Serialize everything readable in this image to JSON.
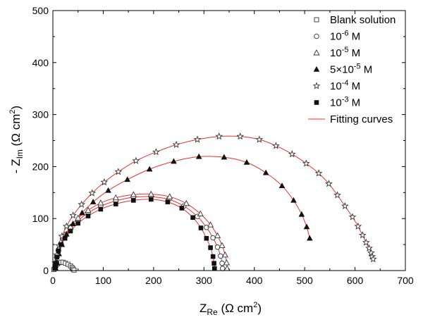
{
  "chart_data": {
    "type": "scatter",
    "xlabel": {
      "main": "Z",
      "sub": "Re",
      "unit_open": " (Ω cm",
      "unit_sup": "2",
      "unit_close": ")"
    },
    "ylabel": {
      "main": "- Z",
      "sub": "Im",
      "unit_open": " (Ω cm",
      "unit_sup": "2",
      "unit_close": ")"
    },
    "xlim": [
      0,
      700
    ],
    "ylim": [
      0,
      500
    ],
    "xticks": [
      0,
      100,
      200,
      300,
      400,
      500,
      600,
      700
    ],
    "yticks": [
      0,
      100,
      200,
      300,
      400,
      500
    ],
    "grid": false,
    "legend_position": "top-right",
    "colors": {
      "fit": "#e8302c",
      "marker_stroke": "#333333",
      "marker_fill": "#111111"
    },
    "series": [
      {
        "name": "Blank solution",
        "marker": "square-open",
        "legend": {
          "base": "Blank solution",
          "sup": "",
          "unit": ""
        },
        "x": [
          2,
          4,
          6,
          9,
          12,
          16,
          20,
          25,
          30,
          35,
          38,
          40,
          42
        ],
        "y": [
          2,
          6,
          10,
          13,
          15,
          16,
          16,
          14,
          12,
          9,
          6,
          3,
          1
        ]
      },
      {
        "name": "10-6 M",
        "marker": "circle-open",
        "legend": {
          "base": "10",
          "sup": "-6",
          "unit": "  M"
        },
        "x": [
          5,
          6,
          8,
          11,
          16,
          24,
          35,
          50,
          70,
          95,
          125,
          160,
          195,
          230,
          260,
          287,
          305,
          318,
          327,
          333,
          336,
          337
        ],
        "y": [
          5,
          15,
          28,
          40,
          52,
          65,
          80,
          96,
          111,
          124,
          134,
          141,
          142,
          137,
          124,
          104,
          83,
          63,
          45,
          28,
          14,
          4
        ]
      },
      {
        "name": "10-5 M",
        "marker": "triangle-open",
        "legend": {
          "base": "10",
          "sup": "-5",
          "unit": "  M"
        },
        "x": [
          5,
          6,
          8,
          11,
          16,
          24,
          35,
          50,
          70,
          95,
          125,
          160,
          195,
          232,
          265,
          293,
          313,
          327,
          336,
          342,
          345,
          346
        ],
        "y": [
          5,
          15,
          29,
          42,
          55,
          69,
          84,
          101,
          116,
          130,
          140,
          146,
          147,
          142,
          129,
          109,
          88,
          67,
          48,
          30,
          15,
          4
        ]
      },
      {
        "name": "5×10-5 M",
        "marker": "triangle-filled",
        "legend": {
          "base": "5×10",
          "sup": "-5",
          "unit": "  M"
        },
        "x": [
          8,
          12,
          18,
          27,
          40,
          58,
          80,
          110,
          148,
          192,
          240,
          290,
          340,
          385,
          423,
          455,
          478,
          494,
          504,
          510
        ],
        "y": [
          15,
          32,
          50,
          70,
          90,
          111,
          132,
          154,
          175,
          195,
          210,
          219,
          218,
          208,
          188,
          163,
          135,
          108,
          84,
          62
        ]
      },
      {
        "name": "10-4 M",
        "marker": "star-open",
        "legend": {
          "base": "10",
          "sup": "-4",
          "unit": "  M"
        },
        "x": [
          5,
          8,
          12,
          18,
          27,
          40,
          57,
          78,
          102,
          130,
          165,
          205,
          245,
          287,
          330,
          372,
          410,
          443,
          475,
          503,
          528,
          548,
          565,
          580,
          595,
          606,
          615,
          622,
          628,
          632,
          634,
          636
        ],
        "y": [
          15,
          30,
          48,
          66,
          85,
          106,
          127,
          149,
          170,
          190,
          211,
          228,
          242,
          252,
          258,
          258,
          252,
          240,
          224,
          206,
          187,
          167,
          145,
          124,
          103,
          85,
          68,
          54,
          43,
          34,
          27,
          22
        ]
      },
      {
        "name": "10-3 M",
        "marker": "square-filled",
        "legend": {
          "base": "10",
          "sup": "-3",
          "unit": "  M"
        },
        "x": [
          5,
          6,
          8,
          11,
          16,
          24,
          35,
          50,
          70,
          95,
          125,
          160,
          195,
          228,
          256,
          278,
          294,
          305,
          313,
          318,
          320,
          321
        ],
        "y": [
          5,
          14,
          26,
          38,
          50,
          62,
          76,
          91,
          105,
          118,
          128,
          135,
          137,
          132,
          120,
          102,
          82,
          62,
          44,
          27,
          14,
          4
        ]
      },
      {
        "name": "Fitting curves",
        "marker": "line",
        "legend": {
          "base": "Fitting curves",
          "sup": "",
          "unit": ""
        }
      }
    ]
  }
}
